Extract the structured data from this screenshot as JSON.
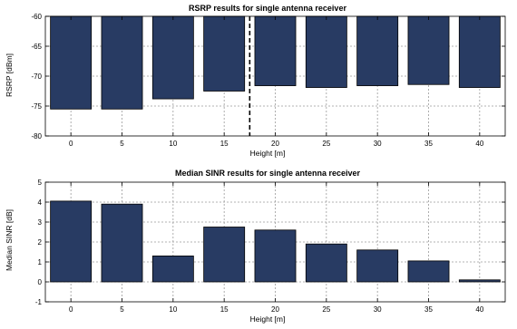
{
  "chart_data": [
    {
      "type": "bar",
      "title": "RSRP results for single antenna receiver",
      "xlabel": "Height [m]",
      "ylabel": "RSRP [dBm]",
      "categories": [
        "0",
        "5",
        "10",
        "15",
        "20",
        "25",
        "30",
        "35",
        "40"
      ],
      "values": [
        -75.5,
        -75.5,
        -73.8,
        -72.5,
        -71.6,
        -71.9,
        -71.6,
        -71.4,
        -71.9
      ],
      "ylim": [
        -80,
        -60
      ],
      "yticks": [
        -60,
        -65,
        -70,
        -75,
        -80
      ],
      "bar_base": -60,
      "bar_color": "#283b63",
      "grid": true,
      "vertical_marker_x": 17.5
    },
    {
      "type": "bar",
      "title": "Median SINR results for single antenna receiver",
      "xlabel": "Height [m]",
      "ylabel": "Median SINR [dB]",
      "categories": [
        "0",
        "5",
        "10",
        "15",
        "20",
        "25",
        "30",
        "35",
        "40"
      ],
      "values": [
        4.05,
        3.9,
        1.3,
        2.75,
        2.6,
        1.9,
        1.6,
        1.05,
        0.1
      ],
      "ylim": [
        -1,
        5
      ],
      "yticks": [
        5,
        4,
        3,
        2,
        1,
        0,
        -1
      ],
      "bar_base": 0,
      "bar_color": "#283b63",
      "grid": true
    }
  ]
}
